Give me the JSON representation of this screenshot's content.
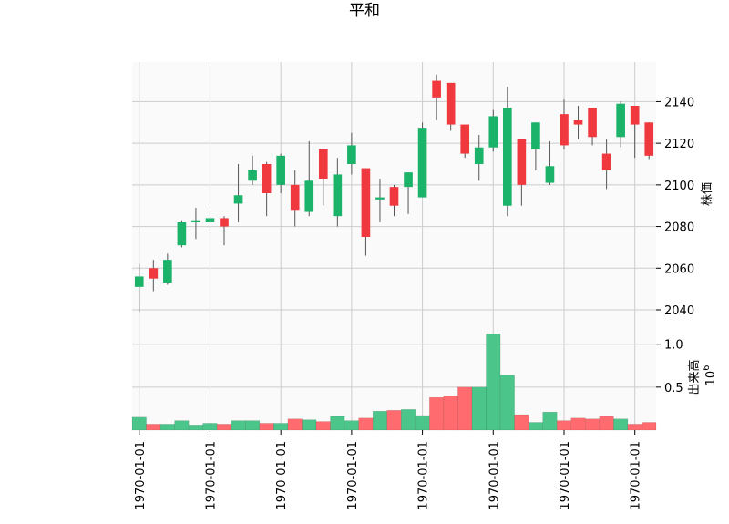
{
  "chart_data": {
    "type": "candlestick",
    "title": "平和",
    "colors": {
      "up": "#1bb36a",
      "down": "#f0393e",
      "vol_up": "#4bc58a",
      "vol_down": "#ff6b6e",
      "grid": "#cccccc",
      "panel_bg": "#fafafa"
    },
    "price_panel": {
      "ylabel": "株価",
      "ylim": [
        2033,
        2159
      ],
      "yticks": [
        2040,
        2060,
        2080,
        2100,
        2120,
        2140
      ],
      "ytick_labels": [
        "2040",
        "2060",
        "2080",
        "2100",
        "2120",
        "2140"
      ]
    },
    "volume_panel": {
      "ylabel": "出来高",
      "scale_label": "10",
      "scale_exponent": "6",
      "ylim": [
        0,
        1.23
      ],
      "yticks": [
        0.5,
        1.0
      ],
      "ytick_labels": [
        "0.5",
        "1.0"
      ]
    },
    "x_tick_positions": [
      0,
      5,
      10,
      15,
      20,
      25,
      30,
      35
    ],
    "x_tick_labels": [
      "1970-01-01",
      "1970-01-01",
      "1970-01-01",
      "1970-01-01",
      "1970-01-01",
      "1970-01-01",
      "1970-01-01",
      "1970-01-01"
    ],
    "candles": [
      {
        "open": 2051,
        "high": 2062,
        "low": 2039,
        "close": 2056,
        "volume": 0.15
      },
      {
        "open": 2060,
        "high": 2064,
        "low": 2049,
        "close": 2055,
        "volume": 0.07
      },
      {
        "open": 2053,
        "high": 2067,
        "low": 2052,
        "close": 2064,
        "volume": 0.07
      },
      {
        "open": 2071,
        "high": 2083,
        "low": 2070,
        "close": 2082,
        "volume": 0.11
      },
      {
        "open": 2082,
        "high": 2089,
        "low": 2074,
        "close": 2083,
        "volume": 0.06
      },
      {
        "open": 2082,
        "high": 2088,
        "low": 2078,
        "close": 2084,
        "volume": 0.08
      },
      {
        "open": 2084,
        "high": 2085,
        "low": 2071,
        "close": 2080,
        "volume": 0.07
      },
      {
        "open": 2091,
        "high": 2110,
        "low": 2082,
        "close": 2095,
        "volume": 0.11
      },
      {
        "open": 2102,
        "high": 2114,
        "low": 2100,
        "close": 2107,
        "volume": 0.11
      },
      {
        "open": 2110,
        "high": 2111,
        "low": 2085,
        "close": 2096,
        "volume": 0.08
      },
      {
        "open": 2100,
        "high": 2115,
        "low": 2096,
        "close": 2114,
        "volume": 0.08
      },
      {
        "open": 2100,
        "high": 2107,
        "low": 2080,
        "close": 2088,
        "volume": 0.13
      },
      {
        "open": 2087,
        "high": 2121,
        "low": 2085,
        "close": 2102,
        "volume": 0.12
      },
      {
        "open": 2117,
        "high": 2117,
        "low": 2090,
        "close": 2103,
        "volume": 0.1
      },
      {
        "open": 2085,
        "high": 2113,
        "low": 2080,
        "close": 2105,
        "volume": 0.16
      },
      {
        "open": 2110,
        "high": 2125,
        "low": 2105,
        "close": 2119,
        "volume": 0.11
      },
      {
        "open": 2108,
        "high": 2108,
        "low": 2066,
        "close": 2075,
        "volume": 0.14
      },
      {
        "open": 2093,
        "high": 2103,
        "low": 2082,
        "close": 2094,
        "volume": 0.22
      },
      {
        "open": 2099,
        "high": 2100,
        "low": 2085,
        "close": 2090,
        "volume": 0.23
      },
      {
        "open": 2099,
        "high": 2106,
        "low": 2086,
        "close": 2106,
        "volume": 0.24
      },
      {
        "open": 2094,
        "high": 2130,
        "low": 2094,
        "close": 2127,
        "volume": 0.17
      },
      {
        "open": 2150,
        "high": 2153,
        "low": 2131,
        "close": 2142,
        "volume": 0.38
      },
      {
        "open": 2149,
        "high": 2149,
        "low": 2126,
        "close": 2129,
        "volume": 0.4
      },
      {
        "open": 2129,
        "high": 2129,
        "low": 2113,
        "close": 2115,
        "volume": 0.5
      },
      {
        "open": 2110,
        "high": 2124,
        "low": 2102,
        "close": 2118,
        "volume": 0.5
      },
      {
        "open": 2118,
        "high": 2136,
        "low": 2116,
        "close": 2133,
        "volume": 1.12
      },
      {
        "open": 2090,
        "high": 2147,
        "low": 2085,
        "close": 2137,
        "volume": 0.64
      },
      {
        "open": 2122,
        "high": 2122,
        "low": 2090,
        "close": 2100,
        "volume": 0.18
      },
      {
        "open": 2117,
        "high": 2130,
        "low": 2107,
        "close": 2130,
        "volume": 0.09
      },
      {
        "open": 2101,
        "high": 2121,
        "low": 2100,
        "close": 2109,
        "volume": 0.21
      },
      {
        "open": 2134,
        "high": 2141,
        "low": 2117,
        "close": 2119,
        "volume": 0.11
      },
      {
        "open": 2131,
        "high": 2138,
        "low": 2122,
        "close": 2129,
        "volume": 0.14
      },
      {
        "open": 2137,
        "high": 2137,
        "low": 2119,
        "close": 2123,
        "volume": 0.13
      },
      {
        "open": 2115,
        "high": 2122,
        "low": 2098,
        "close": 2107,
        "volume": 0.16
      },
      {
        "open": 2123,
        "high": 2140,
        "low": 2118,
        "close": 2139,
        "volume": 0.13
      },
      {
        "open": 2138,
        "high": 2138,
        "low": 2113,
        "close": 2129,
        "volume": 0.07
      },
      {
        "open": 2130,
        "high": 2130,
        "low": 2112,
        "close": 2114,
        "volume": 0.09
      }
    ]
  }
}
